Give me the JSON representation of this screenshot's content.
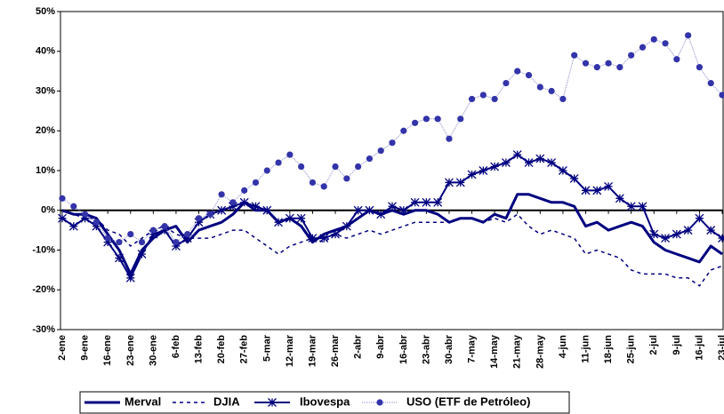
{
  "chart_data": {
    "type": "line",
    "categories": [
      "2-ene",
      null,
      "9-ene",
      null,
      "16-ene",
      null,
      "23-ene",
      null,
      "30-ene",
      null,
      "6-feb",
      null,
      "13-feb",
      null,
      "20-feb",
      null,
      "27-feb",
      null,
      "5-mar",
      null,
      "12-mar",
      null,
      "19-mar",
      null,
      "26-mar",
      null,
      "2-abr",
      null,
      "9-abr",
      null,
      "16-abr",
      null,
      "23-abr",
      null,
      "30-abr",
      null,
      "7-may",
      null,
      "14-may",
      null,
      "21-may",
      null,
      "28-may",
      null,
      "4-jun",
      null,
      "11-jun",
      null,
      "18-jun",
      null,
      "25-jun",
      null,
      "2-jul",
      null,
      "9-jul",
      null,
      "16-jul",
      null,
      "23-jul"
    ],
    "series": [
      {
        "name": "Merval",
        "color": "#000080",
        "marker": "none",
        "dash": false,
        "width": 3,
        "values": [
          0,
          -1,
          -1,
          -2,
          -6,
          -10,
          -16,
          -10,
          -7,
          -5,
          -4,
          -8,
          -5,
          -4,
          -3,
          -1,
          2,
          0,
          0,
          -3,
          -2,
          -4,
          -8,
          -6,
          -5,
          -4,
          -2,
          0,
          -1,
          0,
          -1,
          0,
          0,
          -1,
          -3,
          -2,
          -2,
          -3,
          -1,
          -2,
          4,
          4,
          3,
          2,
          2,
          1,
          -4,
          -3,
          -5,
          -4,
          -3,
          -4,
          -8,
          -10,
          -11,
          -12,
          -13,
          -9,
          -11
        ]
      },
      {
        "name": "DJIA",
        "color": "#000080",
        "marker": "none",
        "dash": true,
        "width": 1.5,
        "values": [
          0,
          -1,
          -2,
          -2,
          -5,
          -6,
          -9,
          -7,
          -5,
          -4,
          -6,
          -7,
          -7,
          -7,
          -6,
          -5,
          -5,
          -7,
          -9,
          -11,
          -9,
          -8,
          -7,
          -8,
          -6,
          -7,
          -6,
          -5,
          -6,
          -5,
          -4,
          -3,
          -3,
          -3,
          -3,
          -2,
          -2,
          -3,
          -2,
          -3,
          -1,
          -4,
          -6,
          -5,
          -6,
          -7,
          -11,
          -10,
          -11,
          -12,
          -15,
          -16,
          -16,
          -16,
          -17,
          -17,
          -19,
          -15,
          -14
        ]
      },
      {
        "name": "Ibovespa",
        "color": "#000080",
        "marker": "star",
        "dash": false,
        "width": 2,
        "values": [
          -2,
          -4,
          -2,
          -4,
          -8,
          -12,
          -17,
          -11,
          -6,
          -5,
          -9,
          -7,
          -3,
          -1,
          0,
          1,
          2,
          1,
          0,
          -3,
          -2,
          -2,
          -7,
          -7,
          -6,
          -4,
          0,
          0,
          -1,
          1,
          0,
          2,
          2,
          2,
          7,
          7,
          9,
          10,
          11,
          12,
          14,
          12,
          13,
          12,
          10,
          8,
          5,
          5,
          6,
          3,
          1,
          1,
          -6,
          -7,
          -6,
          -5,
          -2,
          -5,
          -7
        ]
      },
      {
        "name": "USO (ETF de Petróleo)",
        "color": "#3333aa",
        "marker": "circle",
        "dash": false,
        "width": 1,
        "values": [
          3,
          1,
          -1,
          -3,
          -7,
          -8,
          -6,
          -8,
          -5,
          -4,
          -8,
          -6,
          -2,
          -1,
          4,
          2,
          5,
          7,
          10,
          12,
          14,
          11,
          7,
          6,
          11,
          8,
          11,
          13,
          15,
          17,
          20,
          22,
          23,
          23,
          18,
          23,
          28,
          29,
          28,
          32,
          35,
          34,
          31,
          30,
          28,
          39,
          37,
          36,
          37,
          36,
          39,
          41,
          43,
          42,
          38,
          44,
          36,
          32,
          29
        ]
      }
    ],
    "ylim": [
      -30,
      50
    ],
    "yticks": [
      {
        "value": -30,
        "label": "-30%"
      },
      {
        "value": -20,
        "label": "-20%"
      },
      {
        "value": -10,
        "label": "-10%"
      },
      {
        "value": 0,
        "label": "0%"
      },
      {
        "value": 10,
        "label": "10%"
      },
      {
        "value": 20,
        "label": "20%"
      },
      {
        "value": 30,
        "label": "30%"
      },
      {
        "value": 40,
        "label": "40%"
      },
      {
        "value": 50,
        "label": "50%"
      }
    ],
    "legend": "bottom"
  }
}
